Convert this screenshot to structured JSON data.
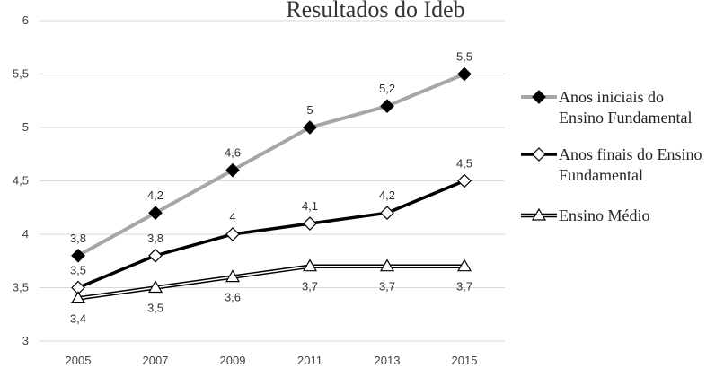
{
  "chart_data": {
    "type": "line",
    "title": "Resultados do Ideb",
    "xlabel": "",
    "ylabel": "",
    "categories": [
      "2005",
      "2007",
      "2009",
      "2011",
      "2013",
      "2015"
    ],
    "ylim": [
      3,
      6
    ],
    "yticks": [
      3,
      3.5,
      4,
      4.5,
      5,
      5.5,
      6
    ],
    "ytick_labels": [
      "3",
      "3,5",
      "4",
      "4,5",
      "5",
      "5,5",
      "6"
    ],
    "grid": true,
    "legend_position": "right",
    "series": [
      {
        "name": "Anos iniciais do Ensino Fundamental",
        "legend_lines": [
          "Anos iniciais do",
          "Ensino Fundamental"
        ],
        "values": [
          3.8,
          4.2,
          4.6,
          5.0,
          5.2,
          5.5
        ],
        "labels": [
          "3,8",
          "4,2",
          "4,6",
          "5",
          "5,2",
          "5,5"
        ],
        "line_color": "#a6a6a6",
        "marker": "diamond-filled",
        "label_position": "above"
      },
      {
        "name": "Anos finais do Ensino Fundamental",
        "legend_lines": [
          "Anos finais do Ensino",
          "Fundamental"
        ],
        "values": [
          3.5,
          3.8,
          4.0,
          4.1,
          4.2,
          4.5
        ],
        "labels": [
          "3,5",
          "3,8",
          "4",
          "4,1",
          "4,2",
          "4,5"
        ],
        "line_color": "#000000",
        "marker": "diamond-open",
        "label_position": "above"
      },
      {
        "name": "Ensino Médio",
        "legend_lines": [
          "Ensino Médio"
        ],
        "values": [
          3.4,
          3.5,
          3.6,
          3.7,
          3.7,
          3.7
        ],
        "labels": [
          "3,4",
          "3,5",
          "3,6",
          "3,7",
          "3,7",
          "3,7"
        ],
        "line_color": "#000000",
        "marker": "triangle-open",
        "label_position": "below"
      }
    ]
  }
}
